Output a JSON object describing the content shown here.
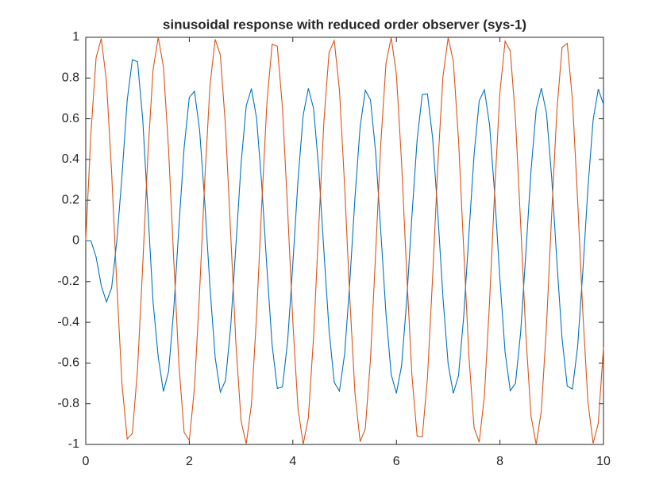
{
  "chart_data": {
    "type": "line",
    "title": "sinusoidal response with reduced order observer (sys-1)",
    "x": [
      0,
      0.1,
      0.2,
      0.3,
      0.4,
      0.5,
      0.6,
      0.7,
      0.8,
      0.9,
      1,
      1.1,
      1.2,
      1.3,
      1.4,
      1.5,
      1.6,
      1.7,
      1.8,
      1.9,
      2,
      2.1,
      2.2,
      2.3,
      2.4,
      2.5,
      2.6,
      2.7,
      2.8,
      2.9,
      3,
      3.1,
      3.2,
      3.3,
      3.4,
      3.5,
      3.6,
      3.7,
      3.8,
      3.9,
      4,
      4.1,
      4.2,
      4.3,
      4.4,
      4.5,
      4.6,
      4.7,
      4.8,
      4.9,
      5,
      5.1,
      5.2,
      5.3,
      5.4,
      5.5,
      5.6,
      5.7,
      5.8,
      5.9,
      6,
      6.1,
      6.2,
      6.3,
      6.4,
      6.5,
      6.6,
      6.7,
      6.8,
      6.9,
      7,
      7.1,
      7.2,
      7.3,
      7.4,
      7.5,
      7.6,
      7.7,
      7.8,
      7.9,
      8,
      8.1,
      8.2,
      8.3,
      8.4,
      8.5,
      8.6,
      8.7,
      8.8,
      8.9,
      9,
      9.1,
      9.2,
      9.3,
      9.4,
      9.5,
      9.6,
      9.7,
      9.8,
      9.9,
      10
    ],
    "series": [
      {
        "color": "#0072bd",
        "values": [
          0,
          0,
          -0.08,
          -0.22,
          -0.3,
          -0.23,
          0.0,
          0.32,
          0.69,
          0.89,
          0.88,
          0.6,
          0.15,
          -0.3,
          -0.57,
          -0.74,
          -0.641,
          -0.336,
          0.071,
          0.458,
          0.705,
          0.735,
          0.542,
          0.183,
          -0.229,
          -0.574,
          -0.743,
          -0.685,
          -0.419,
          -0.023,
          0.378,
          0.664,
          0.748,
          0.602,
          0.273,
          -0.137,
          -0.512,
          -0.725,
          -0.717,
          -0.49,
          -0.113,
          0.299,
          0.618,
          0.749,
          0.651,
          0.355,
          -0.05,
          -0.44,
          -0.695,
          -0.738,
          -0.556,
          -0.203,
          0.212,
          0.561,
          0.74,
          0.692,
          0.434,
          0.042,
          -0.362,
          -0.656,
          -0.749,
          -0.614,
          -0.29,
          0.122,
          0.495,
          0.719,
          0.722,
          0.505,
          0.134,
          -0.279,
          -0.606,
          -0.749,
          -0.662,
          -0.373,
          0.029,
          0.422,
          0.688,
          0.742,
          0.57,
          0.224,
          -0.191,
          -0.548,
          -0.736,
          -0.7,
          -0.45,
          -0.063,
          0.344,
          0.645,
          0.75,
          0.626,
          0.31,
          -0.101,
          -0.48,
          -0.713,
          -0.728,
          -0.521,
          -0.154,
          0.26,
          0.594,
          0.746,
          0.671
        ]
      },
      {
        "color": "#d95319",
        "values": [
          0,
          0.531,
          0.9,
          0.994,
          0.784,
          0.335,
          -0.217,
          -0.702,
          -0.973,
          -0.946,
          -0.631,
          -0.123,
          0.423,
          0.84,
          1.0,
          0.855,
          0.448,
          -0.095,
          -0.61,
          -0.94,
          -0.98,
          -0.722,
          -0.244,
          0.305,
          0.765,
          0.99,
          0.913,
          0.558,
          0.031,
          -0.504,
          -0.885,
          -0.997,
          -0.803,
          -0.364,
          0.183,
          0.682,
          0.966,
          0.956,
          0.653,
          0.15,
          -0.398,
          -0.824,
          -0.999,
          -0.868,
          -0.473,
          0.067,
          0.587,
          0.927,
          0.984,
          0.741,
          0.271,
          -0.282,
          -0.748,
          -0.986,
          -0.923,
          -0.578,
          -0.056,
          0.483,
          0.874,
          0.999,
          0.818,
          0.387,
          -0.162,
          -0.66,
          -0.959,
          -0.963,
          -0.673,
          -0.178,
          0.372,
          0.808,
          0.998,
          0.882,
          0.497,
          -0.039,
          -0.562,
          -0.917,
          -0.989,
          -0.76,
          -0.298,
          0.255,
          0.73,
          0.981,
          0.933,
          0.6,
          0.084,
          -0.458,
          -0.86,
          -1.0,
          -0.834,
          -0.413,
          0.134,
          0.64,
          0.95,
          0.97,
          0.694,
          0.205,
          -0.346,
          -0.792,
          -0.995,
          -0.895,
          -0.522
        ]
      }
    ],
    "xlim": [
      0,
      10
    ],
    "xticks": [
      0,
      2,
      4,
      6,
      8,
      10
    ],
    "ylim": [
      -1,
      1
    ],
    "yticks": [
      -1,
      -0.8,
      -0.6,
      -0.4,
      -0.2,
      0,
      0.2,
      0.4,
      0.6,
      0.8,
      1
    ]
  }
}
